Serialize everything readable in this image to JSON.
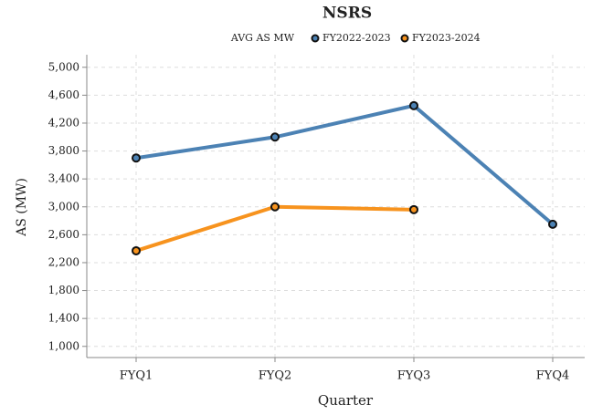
{
  "chart_data": {
    "type": "line",
    "title": "NSRS",
    "legend_title": "AVG AS MW",
    "x_label": "Quarter",
    "y_label": "AS (MW)",
    "categories": [
      "FYQ1",
      "FYQ2",
      "FYQ3",
      "FYQ4"
    ],
    "series": [
      {
        "name": "FY2022-2023",
        "color": "#4c82b4",
        "values": [
          3700,
          4000,
          4450,
          2750
        ]
      },
      {
        "name": "FY2023-2024",
        "color": "#f7931e",
        "values": [
          2370,
          3000,
          2960,
          null
        ]
      }
    ],
    "ylim": [
      840,
      5180
    ],
    "yticks": [
      {
        "value": 1000,
        "label": "1,000"
      },
      {
        "value": 1400,
        "label": "1,400"
      },
      {
        "value": 1800,
        "label": "1,800"
      },
      {
        "value": 2200,
        "label": "2,200"
      },
      {
        "value": 2600,
        "label": "2,600"
      },
      {
        "value": 3000,
        "label": "3,000"
      },
      {
        "value": 3400,
        "label": "3,400"
      },
      {
        "value": 3800,
        "label": "3,800"
      },
      {
        "value": 4200,
        "label": "4,200"
      },
      {
        "value": 4600,
        "label": "4,600"
      },
      {
        "value": 5000,
        "label": "5,000"
      }
    ],
    "grid": true
  }
}
